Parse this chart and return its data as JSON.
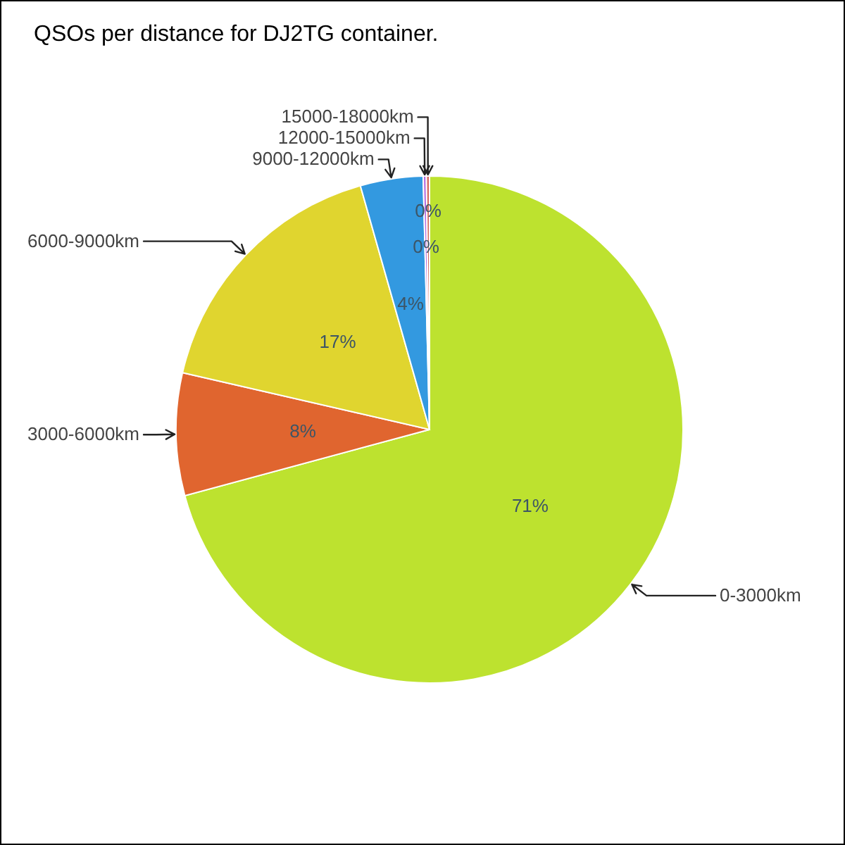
{
  "chart_data": {
    "type": "pie",
    "title": "QSOs per distance for DJ2TG container.",
    "categories": [
      "0-3000km",
      "3000-6000km",
      "6000-9000km",
      "9000-12000km",
      "12000-15000km",
      "15000-18000km"
    ],
    "values": [
      70.8,
      7.8,
      17,
      4,
      0.2,
      0.2
    ],
    "colors": [
      "#bde22f",
      "#e0652f",
      "#e0d52f",
      "#3399e0",
      "#b36be0",
      "#d4685f"
    ],
    "value_labels": [
      "71%",
      "8%",
      "17%",
      "4%",
      "0%",
      "0%"
    ]
  }
}
